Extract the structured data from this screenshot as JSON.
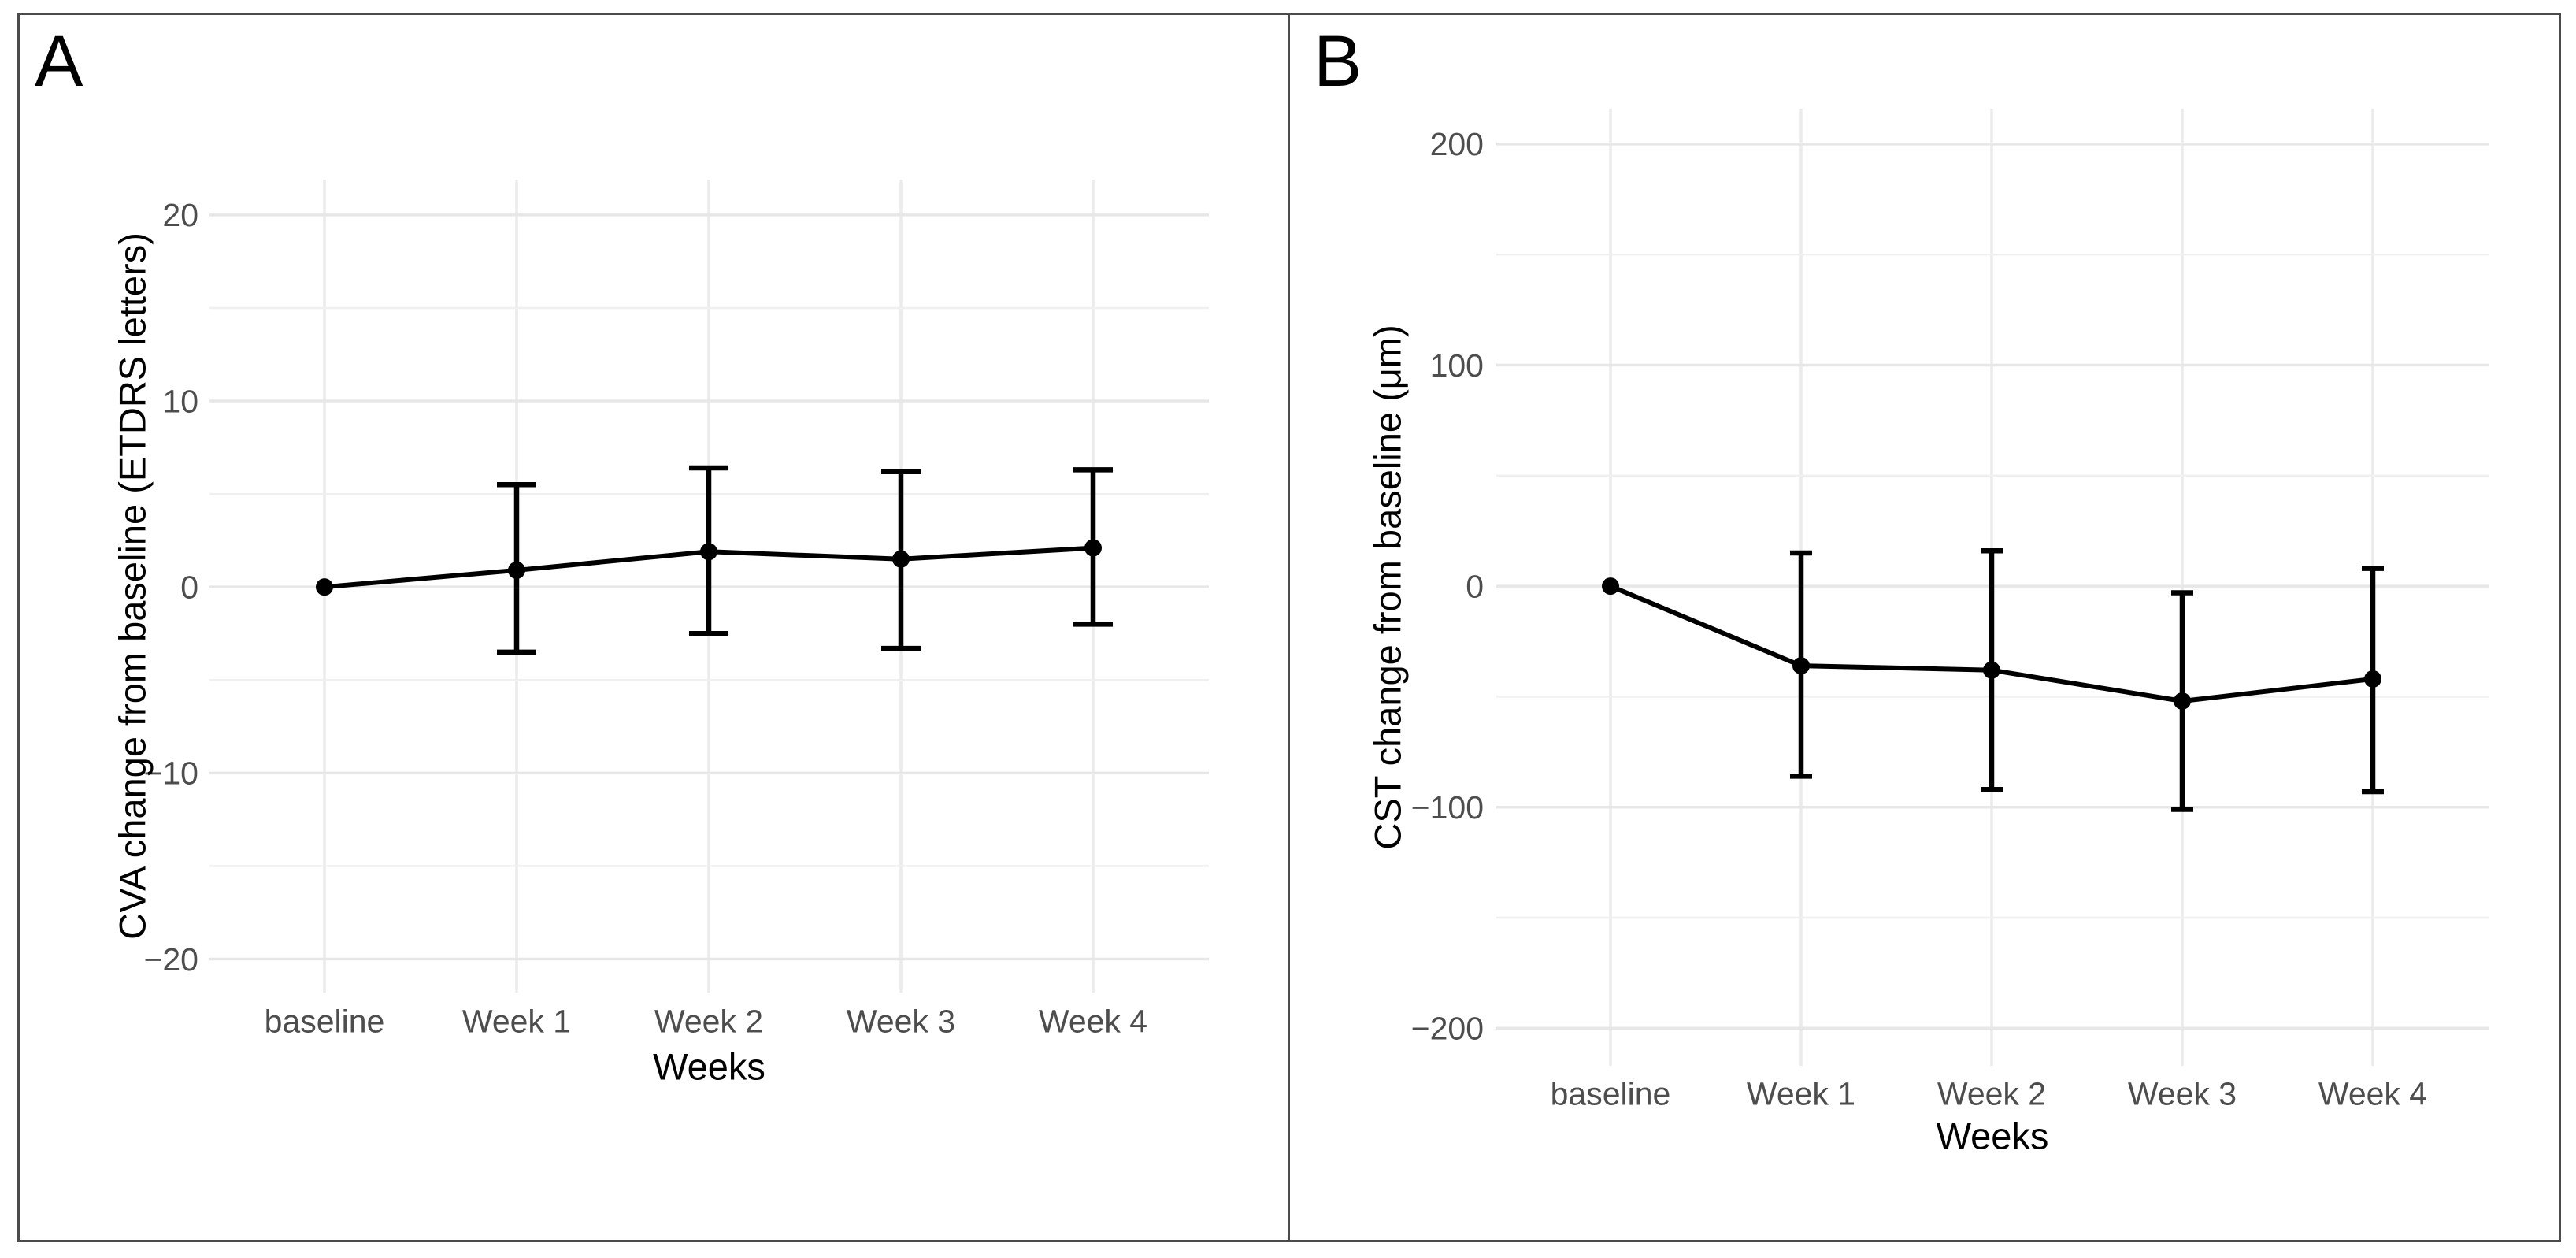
{
  "figure": {
    "panel_letters": [
      "A",
      "B"
    ]
  },
  "colors": {
    "background": "#ffffff",
    "frame_border": "#4b4b4b",
    "grid_major": "#e7e7e7",
    "grid_minor": "#f0f0f0",
    "grid_vertical": "#ebebeb",
    "data_line": "#000000",
    "data_point": "#000000",
    "error_bar": "#000000",
    "tick_label": "#4d4d4d",
    "axis_title": "#000000",
    "panel_letter": "#000000"
  },
  "chart_data": [
    {
      "type": "line",
      "panel_label": "A",
      "categories": [
        "baseline",
        "Week 1",
        "Week 2",
        "Week 3",
        "Week 4"
      ],
      "series": [
        {
          "name": "CVA change from baseline",
          "values": [
            0,
            0.9,
            1.9,
            1.5,
            2.1
          ],
          "error_low": [
            0,
            -3.5,
            -2.5,
            -3.3,
            -2.0
          ],
          "error_high": [
            0,
            5.5,
            6.4,
            6.2,
            6.3
          ]
        }
      ],
      "xlabel": "Weeks",
      "ylabel": "CVA change from baseline (ETDRS letters)",
      "y_ticks": [
        20,
        10,
        0,
        -10,
        -20
      ],
      "y_minor_ticks": [
        15,
        5,
        -5,
        -15
      ],
      "ylim": [
        -21.8,
        21.9
      ],
      "grid": "major-horizontal, minor-horizontal, vertical-at-categories",
      "legend_position": "none",
      "marker": "filled-circle",
      "error_caps": true
    },
    {
      "type": "line",
      "panel_label": "B",
      "categories": [
        "baseline",
        "Week 1",
        "Week 2",
        "Week 3",
        "Week 4"
      ],
      "series": [
        {
          "name": "CST change from baseline",
          "values": [
            0,
            -36,
            -38,
            -52,
            -42
          ],
          "error_low": [
            0,
            -86,
            -92,
            -101,
            -93
          ],
          "error_high": [
            0,
            15,
            16,
            -3,
            8
          ]
        }
      ],
      "xlabel": "Weeks",
      "ylabel": "CST change from baseline (μm)",
      "y_ticks": [
        200,
        100,
        0,
        -100,
        -200
      ],
      "y_minor_ticks": [
        150,
        50,
        -50,
        -150
      ],
      "ylim": [
        -217,
        216
      ],
      "grid": "major-horizontal, minor-horizontal, vertical-at-categories",
      "legend_position": "none",
      "marker": "filled-circle",
      "error_caps": true
    }
  ]
}
